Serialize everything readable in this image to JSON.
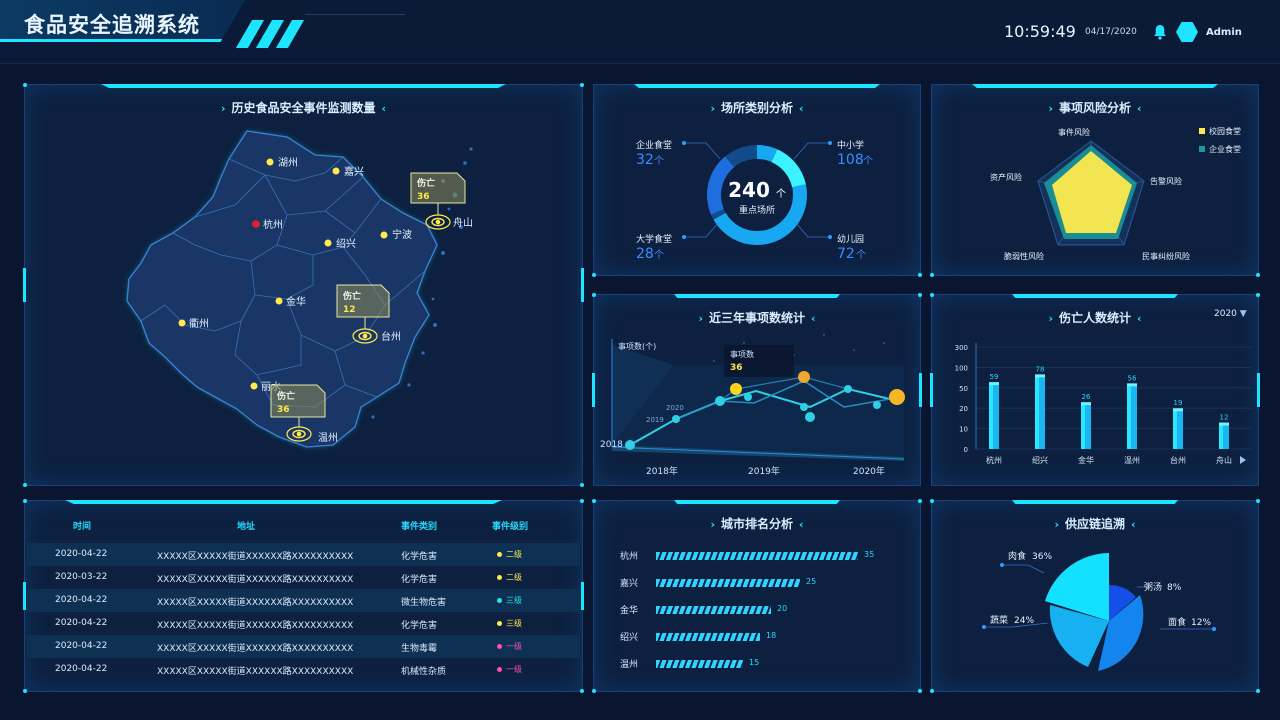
{
  "header": {
    "title": "食品安全追溯系统",
    "time": "10:59:49",
    "date": "04/17/2020",
    "user": "Admin"
  },
  "map_panel": {
    "title": "历史食品安全事件监测数量",
    "cities": [
      {
        "name": "湖州"
      },
      {
        "name": "嘉兴"
      },
      {
        "name": "杭州"
      },
      {
        "name": "舟山"
      },
      {
        "name": "宁波"
      },
      {
        "name": "绍兴"
      },
      {
        "name": "金华"
      },
      {
        "name": "衢州"
      },
      {
        "name": "台州"
      },
      {
        "name": "丽水"
      },
      {
        "name": "温州"
      }
    ],
    "callouts": [
      {
        "label": "伤亡",
        "value": "36"
      },
      {
        "label": "伤亡",
        "value": "12"
      },
      {
        "label": "伤亡",
        "value": "36"
      }
    ]
  },
  "place_panel": {
    "title": "场所类别分析",
    "center_value": "240",
    "center_unit": "个",
    "center_label": "重点场所",
    "items": [
      {
        "name": "企业食堂",
        "value": "32",
        "unit": "个"
      },
      {
        "name": "中小学",
        "value": "108",
        "unit": "个"
      },
      {
        "name": "大学食堂",
        "value": "28",
        "unit": "个"
      },
      {
        "name": "幼儿园",
        "value": "72",
        "unit": "个"
      }
    ]
  },
  "risk_panel": {
    "title": "事项风险分析",
    "axes": [
      "事件风险",
      "告警风险",
      "民事纠纷风险",
      "脆弱性风险",
      "资产风险"
    ],
    "legend": [
      "校园食堂",
      "企业食堂"
    ]
  },
  "trend_panel": {
    "title": "近三年事项数统计",
    "ylabel": "事项数(个)",
    "tooltip_label": "事项数",
    "tooltip_value": "36",
    "back_labels": [
      "2020",
      "2019",
      "2018"
    ],
    "years": [
      "2018年",
      "2019年",
      "2020年"
    ]
  },
  "casualty_panel": {
    "title": "伤亡人数统计",
    "year_select": "2020",
    "chart_data": {
      "type": "bar",
      "categories": [
        "杭州",
        "绍兴",
        "金华",
        "温州",
        "台州",
        "舟山"
      ],
      "values": [
        59,
        78,
        26,
        56,
        19,
        12
      ],
      "yticks": [
        "300",
        "100",
        "50",
        "20",
        "10",
        "0"
      ]
    }
  },
  "table_panel": {
    "headers": [
      "时间",
      "地址",
      "事件类别",
      "事件级别"
    ],
    "rows": [
      {
        "time": "2020-04-22",
        "addr": "XXXXX区XXXXX街道XXXXXX路XXXXXXXXXX",
        "type": "化学危害",
        "level": "二级",
        "color": "#ffe94d"
      },
      {
        "time": "2020-03-22",
        "addr": "XXXXX区XXXXX街道XXXXXX路XXXXXXXXXX",
        "type": "化学危害",
        "level": "二级",
        "color": "#ffe94d"
      },
      {
        "time": "2020-04-22",
        "addr": "XXXXX区XXXXX街道XXXXXX路XXXXXXXXXX",
        "type": "微生物危害",
        "level": "三级",
        "color": "#2ee6e6"
      },
      {
        "time": "2020-04-22",
        "addr": "XXXXX区XXXXX街道XXXXXX路XXXXXXXXXX",
        "type": "化学危害",
        "level": "三级",
        "color": "#ffe94d"
      },
      {
        "time": "2020-04-22",
        "addr": "XXXXX区XXXXX街道XXXXXX路XXXXXXXXXX",
        "type": "生物毒霉",
        "level": "一级",
        "color": "#ff4db3"
      },
      {
        "time": "2020-04-22",
        "addr": "XXXXX区XXXXX街道XXXXXX路XXXXXXXXXX",
        "type": "机械性杂质",
        "level": "一级",
        "color": "#ff4db3"
      }
    ]
  },
  "rank_panel": {
    "title": "城市排名分析",
    "items": [
      {
        "name": "杭州",
        "value": 35
      },
      {
        "name": "嘉兴",
        "value": 25
      },
      {
        "name": "金华",
        "value": 20
      },
      {
        "name": "绍兴",
        "value": 18
      },
      {
        "name": "温州",
        "value": 15
      }
    ]
  },
  "supply_panel": {
    "title": "供应链追溯",
    "slices": [
      {
        "name": "肉食",
        "pct": "36%"
      },
      {
        "name": "粥汤",
        "pct": "8%"
      },
      {
        "name": "面食",
        "pct": "12%"
      },
      {
        "name": "蔬菜",
        "pct": "24%"
      }
    ]
  }
}
